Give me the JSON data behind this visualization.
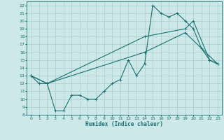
{
  "title": "",
  "xlabel": "Humidex (Indice chaleur)",
  "xlim": [
    -0.5,
    23.5
  ],
  "ylim": [
    8,
    22.5
  ],
  "yticks": [
    8,
    9,
    10,
    11,
    12,
    13,
    14,
    15,
    16,
    17,
    18,
    19,
    20,
    21,
    22
  ],
  "xticks": [
    0,
    1,
    2,
    3,
    4,
    5,
    6,
    7,
    8,
    9,
    10,
    11,
    12,
    13,
    14,
    15,
    16,
    17,
    18,
    19,
    20,
    21,
    22,
    23
  ],
  "bg_color": "#cce8e8",
  "line_color": "#1a7070",
  "grid_color": "#aacccc",
  "line1_x": [
    0,
    1,
    2,
    3,
    4,
    5,
    6,
    7,
    8,
    9,
    10,
    11,
    12,
    13,
    14,
    15,
    16,
    17,
    18,
    19,
    20,
    21,
    22,
    23
  ],
  "line1_y": [
    13,
    12,
    12,
    8.5,
    8.5,
    10.5,
    10.5,
    10,
    10,
    11,
    12,
    12.5,
    15,
    13,
    14.5,
    22,
    21,
    20.5,
    21,
    20,
    19,
    16.5,
    15,
    14.5
  ],
  "line2_x": [
    0,
    2,
    14,
    19,
    20,
    22,
    23
  ],
  "line2_y": [
    13,
    12,
    18,
    19,
    20,
    15,
    14.5
  ],
  "line3_x": [
    0,
    2,
    14,
    19,
    23
  ],
  "line3_y": [
    13,
    12,
    16,
    18.5,
    14.5
  ]
}
